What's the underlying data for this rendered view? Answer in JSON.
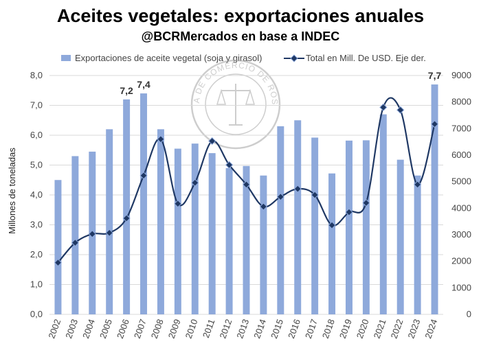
{
  "chart_data": {
    "type": "bar+line",
    "title": "Aceites vegetales: exportaciones anuales",
    "subtitle": "@BCRMercados en base a INDEC",
    "categories": [
      "2002",
      "2003",
      "2004",
      "2005",
      "2006",
      "2007",
      "2008",
      "2009",
      "2010",
      "2011",
      "2012",
      "2013",
      "2014",
      "2015",
      "2016",
      "2017",
      "2018",
      "2019",
      "2020",
      "2021",
      "2022",
      "2023",
      "2024"
    ],
    "series": [
      {
        "name": "Exportaciones de aceite vegetal (soja y girasol)",
        "kind": "bar",
        "axis": "left",
        "color": "#8ea9db",
        "values": [
          4.5,
          5.3,
          5.45,
          6.2,
          7.2,
          7.4,
          6.2,
          5.55,
          5.72,
          5.4,
          4.9,
          4.97,
          4.65,
          6.3,
          6.5,
          5.92,
          4.72,
          5.82,
          5.83,
          6.7,
          5.18,
          4.65,
          7.7
        ]
      },
      {
        "name": "Total en Mill. De USD. Eje der.",
        "kind": "line",
        "axis": "right",
        "color": "#1f3864",
        "values": [
          1950,
          2700,
          3030,
          3070,
          3620,
          5230,
          6600,
          4170,
          4960,
          6530,
          5630,
          4890,
          4060,
          4430,
          4730,
          4500,
          3360,
          3850,
          4200,
          7800,
          7700,
          4890,
          7170
        ]
      }
    ],
    "data_labels": [
      {
        "category": "2006",
        "text": "7,2"
      },
      {
        "category": "2007",
        "text": "7,4"
      },
      {
        "category": "2024",
        "text": "7,7"
      }
    ],
    "ylabel": "Millones de toneladas",
    "ylim": [
      0,
      8
    ],
    "yticks": [
      "0,0",
      "1,0",
      "2,0",
      "3,0",
      "4,0",
      "5,0",
      "6,0",
      "7,0",
      "8,0"
    ],
    "y2lim": [
      0,
      9000
    ],
    "y2ticks": [
      "0",
      "1000",
      "2000",
      "3000",
      "4000",
      "5000",
      "6000",
      "7000",
      "8000",
      "9000"
    ],
    "grid": true,
    "legend_position": "top",
    "watermark": "BOLSA DE COMERCIO DE ROSARIO"
  }
}
